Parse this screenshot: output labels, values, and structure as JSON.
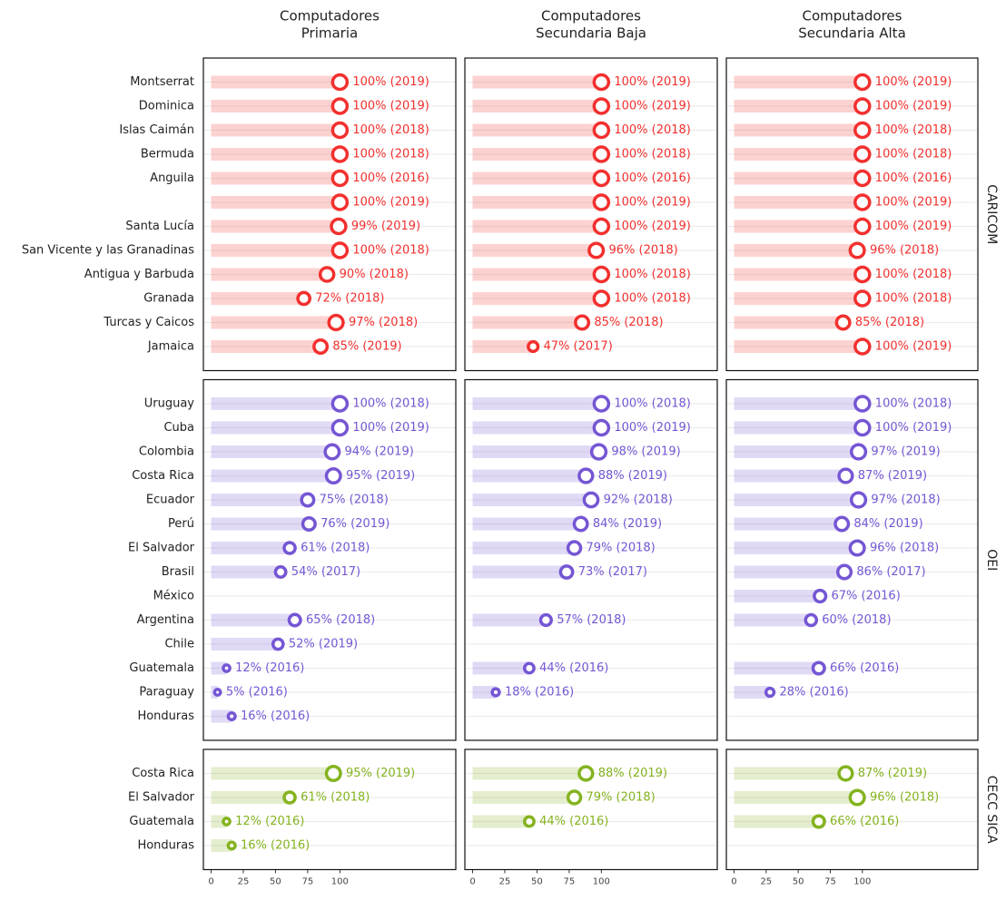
{
  "chart_data": {
    "type": "lollipop",
    "columns": [
      [
        "Computadores",
        "Primaria"
      ],
      [
        "Computadores",
        "Secundaria Baja"
      ],
      [
        "Computadores",
        "Secundaria Alta"
      ]
    ],
    "xlim": [
      -6,
      190
    ],
    "xticks": [
      0,
      25,
      50,
      75,
      100
    ],
    "groups": [
      {
        "name": "CARICOM",
        "color": "#f2302e",
        "categories": [
          "Montserrat",
          "Dominica",
          "Islas Caimán",
          "Bermuda",
          "Anguila",
          null,
          "Santa Lucía",
          "San Vicente y las Granadinas",
          "Antigua y Barbuda",
          "Granada",
          "Turcas y Caicos",
          "Jamaica"
        ],
        "values": [
          [
            100,
            100,
            100,
            100,
            100,
            100,
            99,
            100,
            90,
            72,
            97,
            85
          ],
          [
            100,
            100,
            100,
            100,
            100,
            100,
            100,
            96,
            100,
            100,
            85,
            47
          ],
          [
            100,
            100,
            100,
            100,
            100,
            100,
            100,
            96,
            100,
            100,
            85,
            100
          ]
        ],
        "value_labels": [
          [
            "100% (2019)",
            "100% (2019)",
            "100% (2018)",
            "100% (2018)",
            "100% (2016)",
            "100% (2019)",
            "99% (2019)",
            "100% (2018)",
            "90% (2018)",
            "72% (2018)",
            "97% (2018)",
            "85% (2019)"
          ],
          [
            "100% (2019)",
            "100% (2019)",
            "100% (2018)",
            "100% (2018)",
            "100% (2016)",
            "100% (2019)",
            "100% (2019)",
            "96% (2018)",
            "100% (2018)",
            "100% (2018)",
            "85% (2018)",
            "47% (2017)"
          ],
          [
            "100% (2019)",
            "100% (2019)",
            "100% (2018)",
            "100% (2018)",
            "100% (2016)",
            "100% (2019)",
            "100% (2019)",
            "96% (2018)",
            "100% (2018)",
            "100% (2018)",
            "85% (2018)",
            "100% (2019)"
          ]
        ]
      },
      {
        "name": "OEI",
        "color": "#7556d4",
        "categories": [
          "Uruguay",
          "Cuba",
          "Colombia",
          "Costa Rica",
          "Ecuador",
          "Perú",
          "El Salvador",
          "Brasil",
          "México",
          "Argentina",
          "Chile",
          "Guatemala",
          "Paraguay",
          "Honduras"
        ],
        "values": [
          [
            100,
            100,
            94,
            95,
            75,
            76,
            61,
            54,
            null,
            65,
            52,
            12,
            5,
            16
          ],
          [
            100,
            100,
            98,
            88,
            92,
            84,
            79,
            73,
            null,
            57,
            null,
            44,
            18,
            null
          ],
          [
            100,
            100,
            97,
            87,
            97,
            84,
            96,
            86,
            67,
            60,
            null,
            66,
            28,
            null
          ]
        ],
        "value_labels": [
          [
            "100% (2018)",
            "100% (2019)",
            "94% (2019)",
            "95% (2019)",
            "75% (2018)",
            "76% (2019)",
            "61% (2018)",
            "54% (2017)",
            null,
            "65% (2018)",
            "52% (2019)",
            "12% (2016)",
            "5% (2016)",
            "16% (2016)"
          ],
          [
            "100% (2018)",
            "100% (2019)",
            "98% (2019)",
            "88% (2019)",
            "92% (2018)",
            "84% (2019)",
            "79% (2018)",
            "73% (2017)",
            null,
            "57% (2018)",
            null,
            "44% (2016)",
            "18% (2016)",
            null
          ],
          [
            "100% (2018)",
            "100% (2019)",
            "97% (2019)",
            "87% (2019)",
            "97% (2018)",
            "84% (2019)",
            "96% (2018)",
            "86% (2017)",
            "67% (2016)",
            "60% (2018)",
            null,
            "66% (2016)",
            "28% (2016)",
            null
          ]
        ]
      },
      {
        "name": "CECC SICA",
        "color": "#84b31f",
        "categories": [
          "Costa Rica",
          "El Salvador",
          "Guatemala",
          "Honduras"
        ],
        "values": [
          [
            95,
            61,
            12,
            16
          ],
          [
            88,
            79,
            44,
            null
          ],
          [
            87,
            96,
            66,
            null
          ]
        ],
        "value_labels": [
          [
            "95% (2019)",
            "61% (2018)",
            "12% (2016)",
            "16% (2016)"
          ],
          [
            "88% (2019)",
            "79% (2018)",
            "44% (2016)",
            null
          ],
          [
            "87% (2019)",
            "96% (2018)",
            "66% (2016)",
            null
          ]
        ]
      }
    ]
  }
}
